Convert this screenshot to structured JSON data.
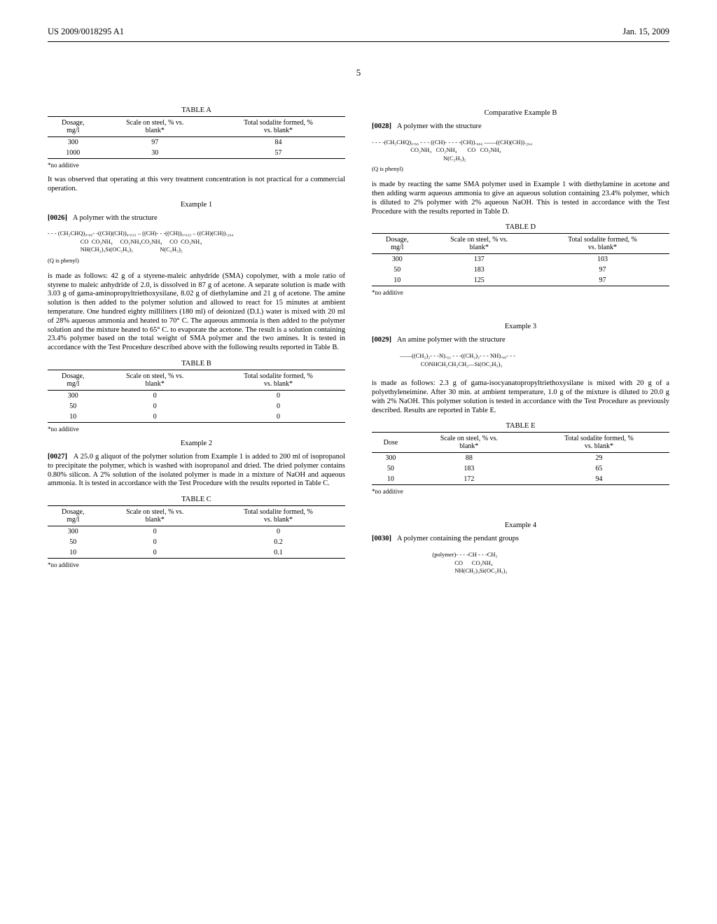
{
  "header": {
    "left": "US 2009/0018295 A1",
    "right": "Jan. 15, 2009"
  },
  "page_number": "5",
  "footnote_text": "*no additive",
  "q_note": "(Q is phenyl)",
  "col1": {
    "tableA": {
      "caption": "TABLE A",
      "headers": [
        "Dosage,\nmg/l",
        "Scale on steel, % vs.\nblank*",
        "Total sodalite formed, %\nvs. blank*"
      ],
      "rows": [
        [
          "300",
          "97",
          "84"
        ],
        [
          "1000",
          "30",
          "57"
        ]
      ]
    },
    "after_a": "It was observed that operating at this very treatment concentration is not practical for a commercial operation.",
    "ex1_title": "Example 1",
    "p0026_num": "[0026]",
    "p0026_text": "A polymer with the structure",
    "formula1_l1": "- - - (CH₂CHQ)₀.₆₆- -((CH)(CH))₀.₀₃₃ – ((CH)- - -((CH))₀.₀₃₃ – ((CH)(CH)).₂₆₄",
    "formula1_l2": "                      CO  CO₂NH₄     CO₂NH₄CO₂NH₄     CO  CO₂NH₄",
    "formula1_l3": "                      NH(CH₂)₃Si(OC₂H₅)₃                  N(C₂H₅)₂",
    "p_ex1_body": "is made as follows: 42 g of a styrene-maleic anhydride (SMA) copolymer, with a mole ratio of styrene to maleic anhydride of 2.0, is dissolved in 87 g of acetone. A separate solution is made with 3.03 g of gama-aminopropyltriethoxysilane, 8.02 g of diethylamine and 21 g of acetone. The amine solution is then added to the polymer solution and allowed to react for 15 minutes at ambient temperature. One hundred eighty milliliters (180 ml) of deionized (D.I.) water is mixed with 20 ml of 28% aqueous ammonia and heated to 70° C. The aqueous ammonia is then added to the polymer solution and the mixture heated to 65° C. to evaporate the acetone. The result is a solution containing 23.4% polymer based on the total weight of SMA polymer and the two amines. It is tested in accordance with the Test Procedure described above with the following results reported in Table B.",
    "tableB": {
      "caption": "TABLE B",
      "headers": [
        "Dosage,\nmg/l",
        "Scale on steel, % vs.\nblank*",
        "Total sodalite formed, %\nvs. blank*"
      ],
      "rows": [
        [
          "300",
          "0",
          "0"
        ],
        [
          "50",
          "0",
          "0"
        ],
        [
          "10",
          "0",
          "0"
        ]
      ]
    },
    "ex2_title": "Example 2",
    "p0027_num": "[0027]",
    "p0027_text": "A 25.0 g aliquot of the polymer solution from Example 1 is added to 200 ml of isopropanol to precipitate the polymer, which is washed with isopropanol and dried. The dried polymer contains 0.80% silicon. A 2% solution of the isolated polymer is made in a mixture of NaOH and aqueous ammonia. It is tested in accordance with the Test Procedure with the results reported in Table C.",
    "tableC": {
      "caption": "TABLE C",
      "headers": [
        "Dosage,\nmg/l",
        "Scale on steel, % vs.\nblank*",
        "Total sodalite formed, %\nvs. blank*"
      ],
      "rows": [
        [
          "300",
          "0",
          "0"
        ],
        [
          "50",
          "0",
          "0.2"
        ],
        [
          "10",
          "0",
          "0.1"
        ]
      ]
    }
  },
  "col2": {
    "compB_title": "Comparative Example B",
    "p0028_num": "[0028]",
    "p0028_text": "A polymer with the structure",
    "formula2_l1": "- - - -(CH₂CHQ)₀.₆₆ - - - ((CH)- - - - -(CH)).₀₆₆ ——((CH)(CH)).₂₆₄",
    "formula2_l2": "                          CO₂NH₄   CO₂NH₄       CO   CO₂NH₄",
    "formula2_l3": "                                                N(C₂H₅)₂",
    "p_compB_body": "is made by reacting the same SMA polymer used in Example 1 with diethylamine in acetone and then adding warm aqueous ammonia to give an aqueous solution containing 23.4% polymer, which is diluted to 2% polymer with 2% aqueous NaOH. This is tested in accordance with the Test Procedure with the results reported in Table D.",
    "tableD": {
      "caption": "TABLE D",
      "headers": [
        "Dosage,\nmg/l",
        "Scale on steel, % vs.\nblank*",
        "Total sodalite formed, %\nvs. blank*"
      ],
      "rows": [
        [
          "300",
          "137",
          "103"
        ],
        [
          "50",
          "183",
          "97"
        ],
        [
          "10",
          "125",
          "97"
        ]
      ]
    },
    "ex3_title": "Example 3",
    "p0029_num": "[0029]",
    "p0029_text": "An amine polymer with the structure",
    "formula3_l1": "——((CH₂)₂- - -N).₀₂ - - -((CH₂)₂- - - NH).₉₈- - -",
    "formula3_l2": "              CONHCH₂CH₂CH₂—Si(OC₂H₅)₃",
    "p_ex3_body": "is made as follows: 2.3 g of gama-isocyanatopropyltriethoxysilane is mixed with 20 g of a polyethyleneimine. After 30 min. at ambient temperature, 1.0 g of the mixture is diluted to 20.0 g with 2% NaOH. This polymer solution is tested in accordance with the Test Procedure as previously described. Results are reported in Table E.",
    "tableE": {
      "caption": "TABLE E",
      "headers": [
        "Dose",
        "Scale on steel, % vs.\nblank*",
        "Total sodalite formed, %\nvs. blank*"
      ],
      "rows": [
        [
          "300",
          "88",
          "29"
        ],
        [
          "50",
          "183",
          "65"
        ],
        [
          "10",
          "172",
          "94"
        ]
      ]
    },
    "ex4_title": "Example 4",
    "p0030_num": "[0030]",
    "p0030_text": "A polymer containing the pendant groups",
    "formula4_l1": "   (polymer)- - - -CH - - -CH₂",
    "formula4_l2": "                  CO      CO₂NH₄",
    "formula4_l3": "                  NH(CH₂)₃Si(OC₂H₅)₃"
  }
}
